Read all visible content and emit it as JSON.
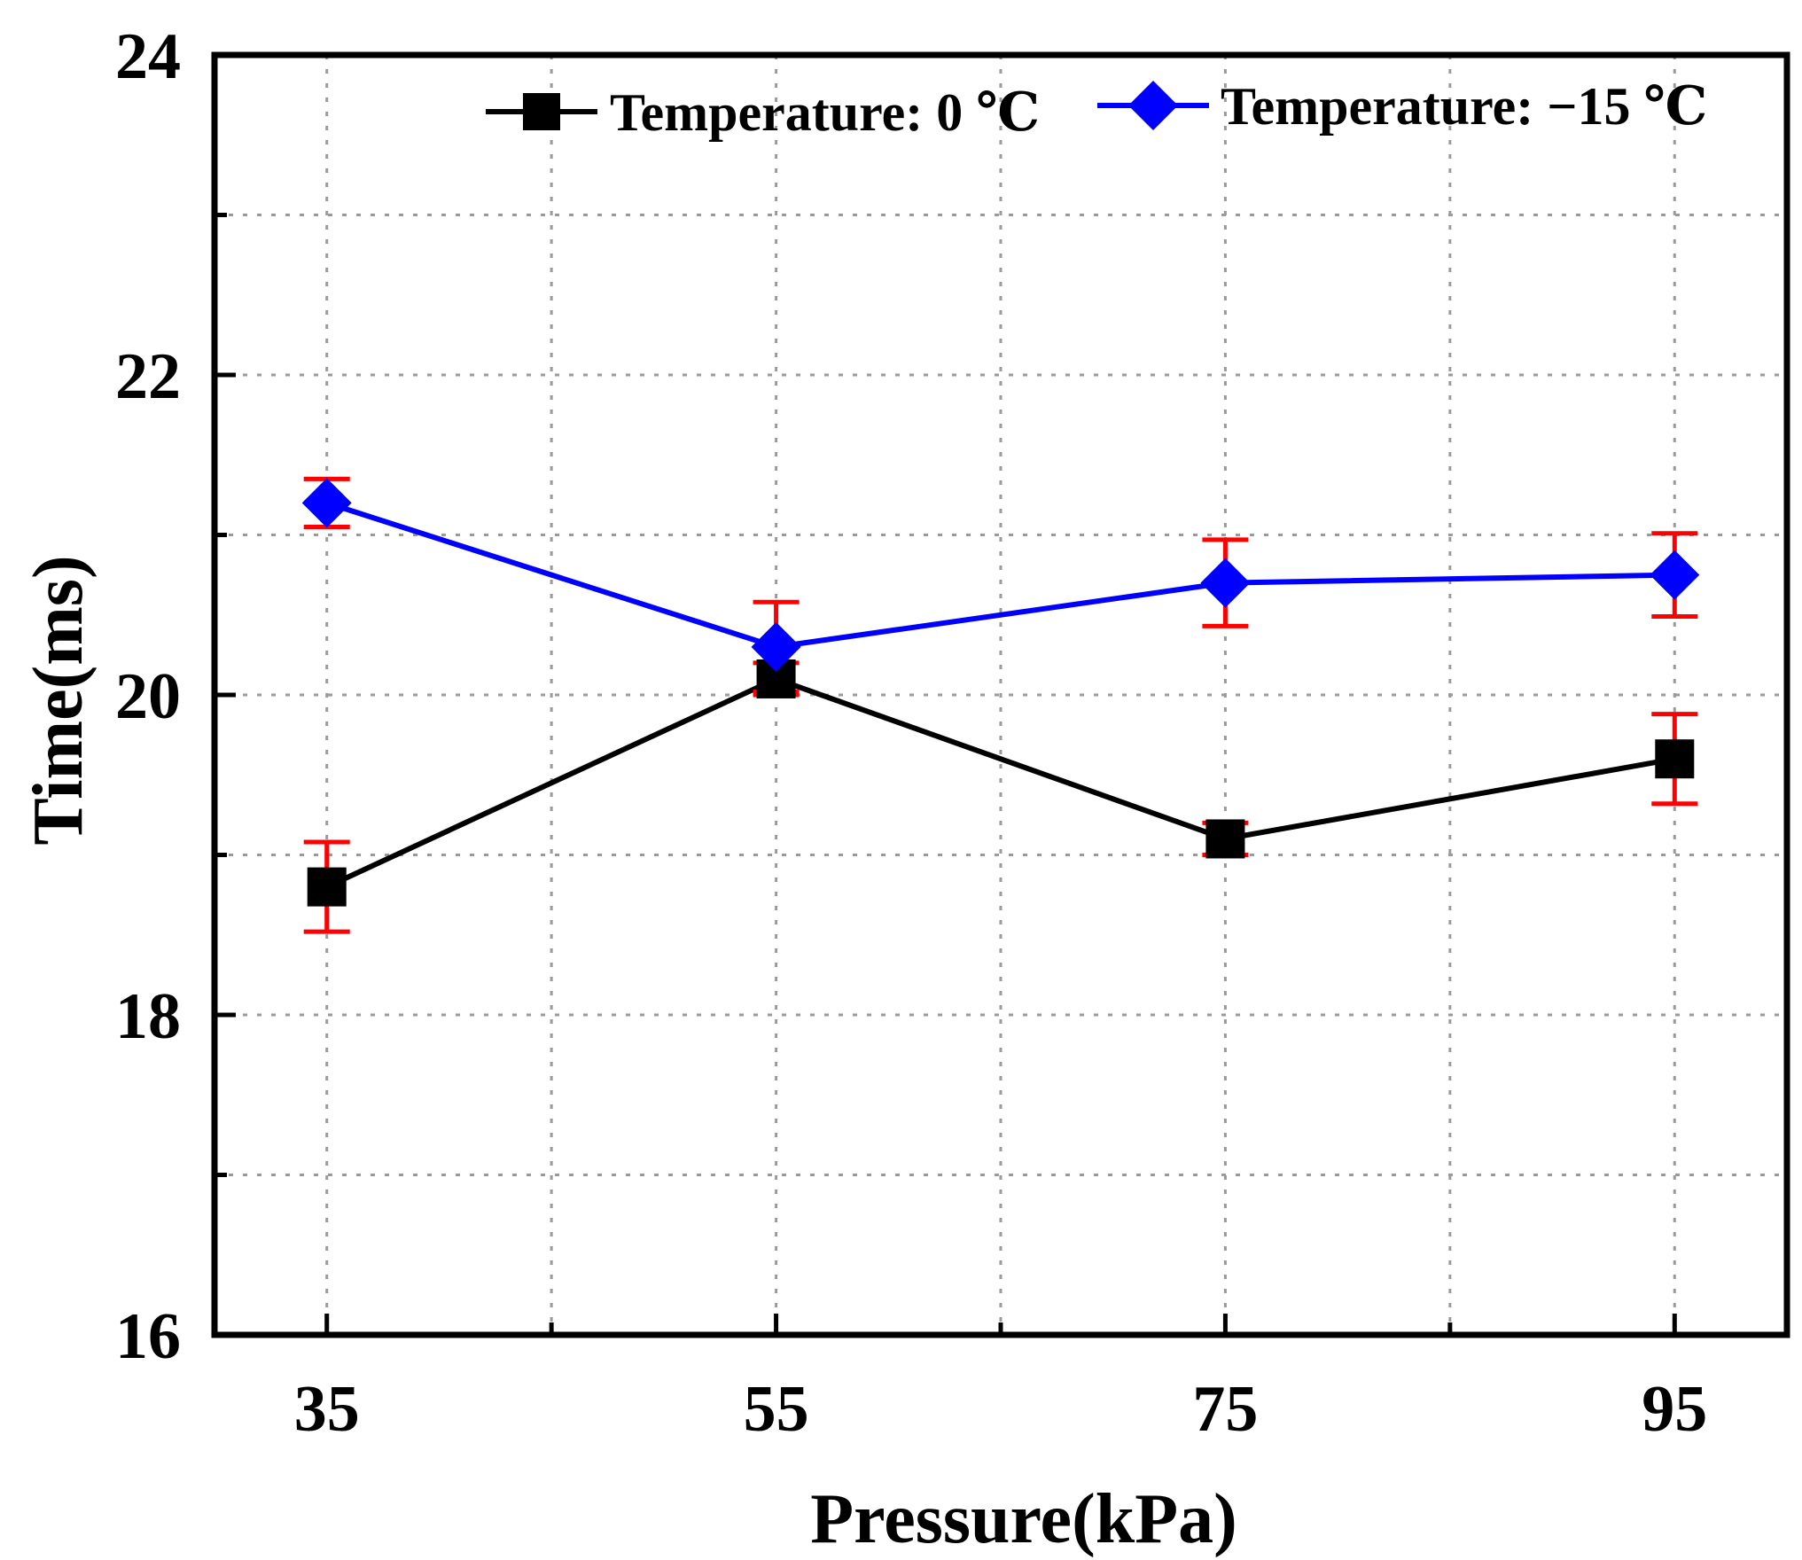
{
  "chart_data": {
    "type": "line",
    "title": "",
    "xlabel": "Pressure(kPa)",
    "ylabel": "Time(ms)",
    "x": [
      35,
      55,
      75,
      95
    ],
    "x_tick_labels": [
      "35",
      "55",
      "75",
      "95"
    ],
    "xlim": [
      30,
      100
    ],
    "ylim": [
      16,
      24
    ],
    "y_ticks": [
      16,
      18,
      20,
      22,
      24
    ],
    "y_tick_labels": [
      "16",
      "18",
      "20",
      "22",
      "24"
    ],
    "grid": true,
    "legend_position": "top-right",
    "series": [
      {
        "name": "Temperature: 0 ℃",
        "color": "#000000",
        "marker": "square",
        "values": [
          18.8,
          20.1,
          19.1,
          19.6
        ],
        "errors": [
          0.28,
          0.1,
          0.1,
          0.28
        ]
      },
      {
        "name": "Temperature: −15 ℃",
        "color": "#0000ff",
        "marker": "diamond",
        "values": [
          21.2,
          20.3,
          20.7,
          20.75
        ],
        "errors": [
          0.15,
          0.28,
          0.27,
          0.26
        ]
      }
    ],
    "error_bar_color": "#ff0000"
  }
}
